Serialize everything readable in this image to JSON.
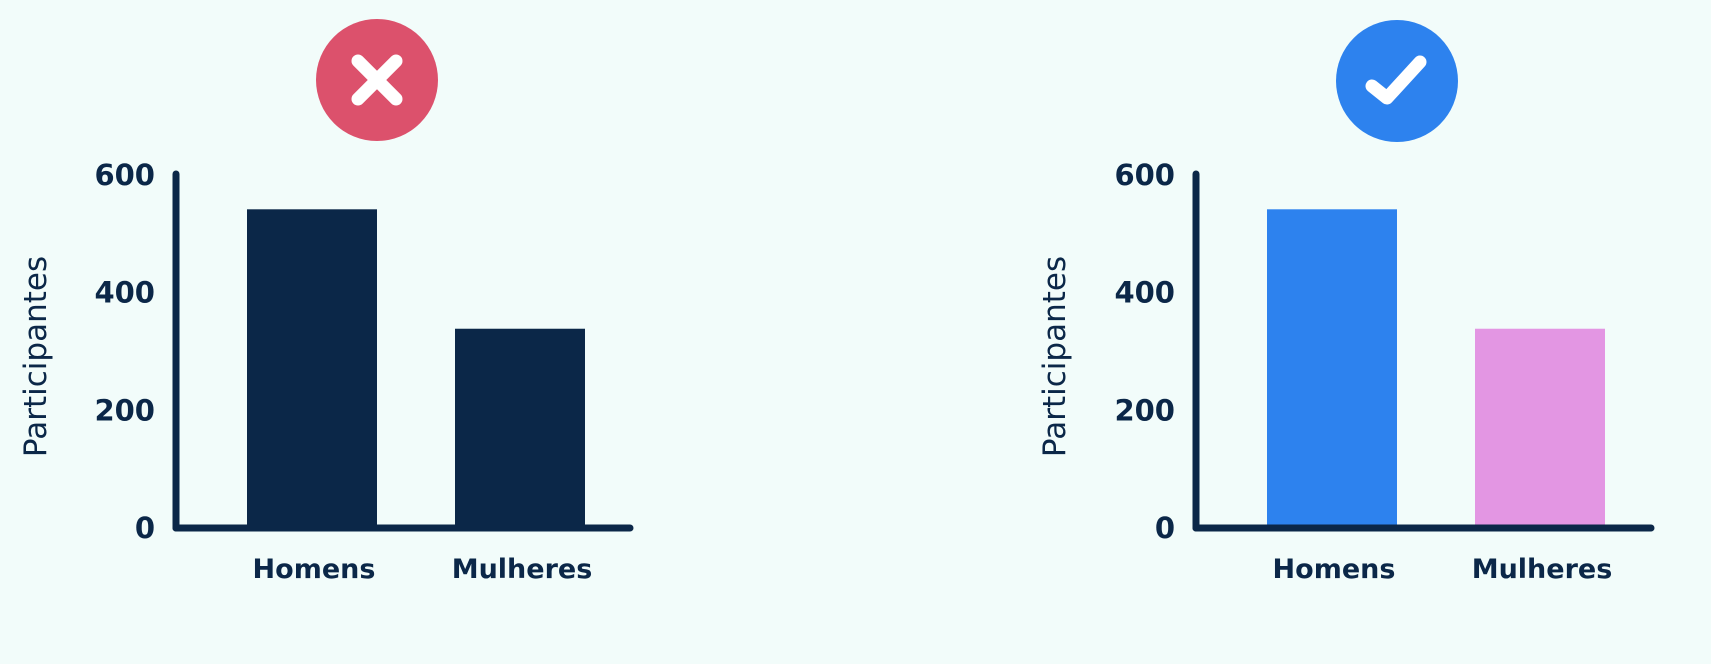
{
  "colors": {
    "background": "#f2fcfa",
    "axis": "#0b2748",
    "text": "#0b2748",
    "bad_badge": "#dc516c",
    "good_badge": "#2d82ee"
  },
  "chart_data": [
    {
      "type": "bar",
      "badge_icon": "x-mark-icon",
      "badge_color": "#dc516c",
      "categories": [
        "Homens",
        "Mulheres"
      ],
      "values": [
        540,
        337
      ],
      "bar_colors": [
        "#0b2748",
        "#0b2748"
      ],
      "title": "",
      "xlabel": "",
      "ylabel": "Participantes",
      "ylim": [
        0,
        600
      ],
      "yticks": [
        0,
        200,
        400,
        600
      ],
      "grid": false,
      "legend": "none"
    },
    {
      "type": "bar",
      "badge_icon": "check-mark-icon",
      "badge_color": "#2d82ee",
      "categories": [
        "Homens",
        "Mulheres"
      ],
      "values": [
        540,
        337
      ],
      "bar_colors": [
        "#2d82ee",
        "#e396e3"
      ],
      "title": "",
      "xlabel": "",
      "ylabel": "Participantes",
      "ylim": [
        0,
        600
      ],
      "yticks": [
        0,
        200,
        400,
        600
      ],
      "grid": false,
      "legend": "none"
    }
  ]
}
